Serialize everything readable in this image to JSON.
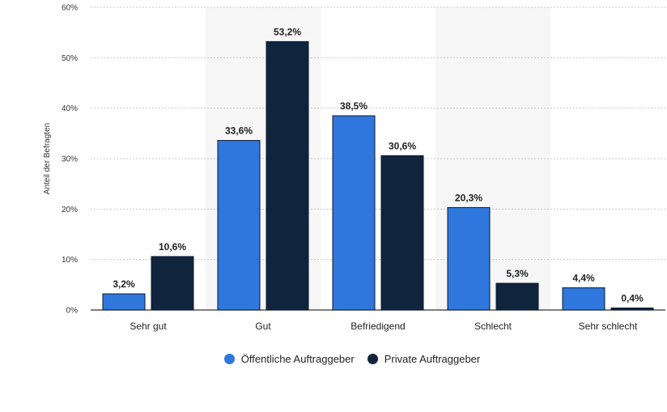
{
  "chart_data": {
    "type": "bar",
    "ylabel": "Anteil der Befragten",
    "xlabel": "",
    "ylim": [
      0,
      60
    ],
    "yticks": [
      "0%",
      "10%",
      "20%",
      "30%",
      "40%",
      "50%",
      "60%"
    ],
    "categories": [
      "Sehr gut",
      "Gut",
      "Befriedigend",
      "Schlecht",
      "Sehr schlecht"
    ],
    "series": [
      {
        "name": "Öffentliche Auftraggeber",
        "color": "#2f77dd",
        "values": [
          3.2,
          33.6,
          38.5,
          20.3,
          4.4
        ],
        "labels": [
          "3,2%",
          "33,6%",
          "38,5%",
          "20,3%",
          "4,4%"
        ]
      },
      {
        "name": "Private Auftraggeber",
        "color": "#10243e",
        "values": [
          10.6,
          53.2,
          30.6,
          5.3,
          0.4
        ],
        "labels": [
          "10,6%",
          "53,2%",
          "30,6%",
          "5,3%",
          "0,4%"
        ]
      }
    ],
    "grid": true,
    "legend_position": "bottom"
  }
}
